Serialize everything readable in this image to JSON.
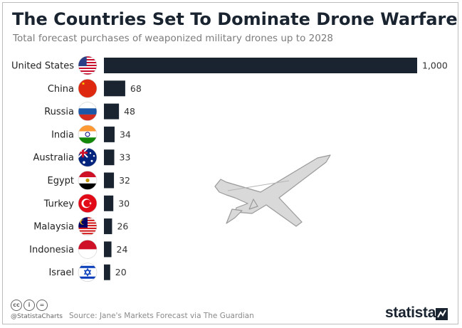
{
  "title": "The Countries Set To Dominate Drone Warfare",
  "subtitle": "Total forecast purchases of weaponized military drones up to 2028",
  "footer": {
    "handle": "@StatistaCharts",
    "source": "Source: Jane's Markets Forecast via The Guardian",
    "brand": "statista",
    "license_icons": [
      "cc-icon",
      "by-icon",
      "nd-icon"
    ]
  },
  "colors": {
    "bar": "#1a2430",
    "text": "#1a2430",
    "muted": "#7c7c7c"
  },
  "chart_data": {
    "type": "bar",
    "orientation": "horizontal",
    "categories": [
      "United States",
      "China",
      "Russia",
      "India",
      "Australia",
      "Egypt",
      "Turkey",
      "Malaysia",
      "Indonesia",
      "Israel"
    ],
    "values": [
      1000,
      68,
      48,
      34,
      33,
      32,
      30,
      26,
      24,
      20
    ],
    "value_labels": [
      "1,000",
      "68",
      "48",
      "34",
      "33",
      "32",
      "30",
      "26",
      "24",
      "20"
    ],
    "flags": [
      "flag-us-icon",
      "flag-cn-icon",
      "flag-ru-icon",
      "flag-in-icon",
      "flag-au-icon",
      "flag-eg-icon",
      "flag-tr-icon",
      "flag-my-icon",
      "flag-id-icon",
      "flag-il-icon"
    ],
    "xlim": [
      0,
      1000
    ],
    "grid": false,
    "legend": "none"
  }
}
